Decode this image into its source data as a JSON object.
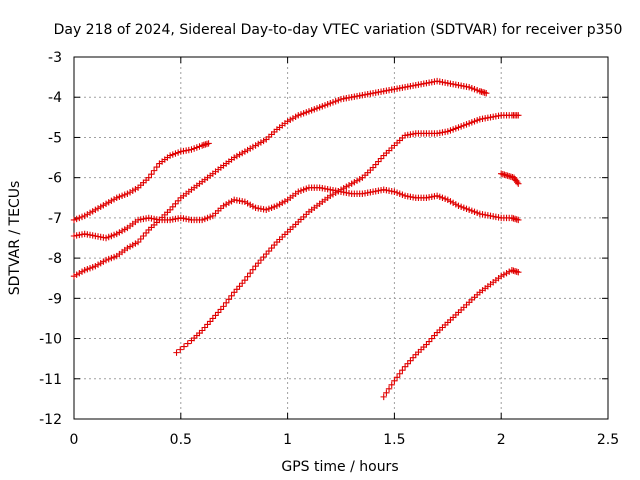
{
  "chart_data": {
    "type": "scatter",
    "title": "Day 218 of 2024, Sidereal Day-to-day VTEC variation (SDTVAR) for receiver p350",
    "xlabel": "GPS time / hours",
    "ylabel": "SDTVAR / TECUs",
    "xlim": [
      0,
      2.5
    ],
    "ylim": [
      -12,
      -3
    ],
    "xticks": [
      "0",
      "0.5",
      "1",
      "1.5",
      "2",
      "2.5"
    ],
    "yticks": [
      "-3",
      "-4",
      "-5",
      "-6",
      "-7",
      "-8",
      "-9",
      "-10",
      "-11",
      "-12"
    ],
    "grid": true,
    "marker": "plus",
    "color": "#e00000",
    "series": [
      {
        "points": [
          [
            0.0,
            -7.05
          ],
          [
            0.05,
            -6.95
          ],
          [
            0.1,
            -6.8
          ],
          [
            0.15,
            -6.65
          ],
          [
            0.2,
            -6.5
          ],
          [
            0.25,
            -6.4
          ],
          [
            0.3,
            -6.25
          ],
          [
            0.35,
            -6.0
          ],
          [
            0.4,
            -5.65
          ],
          [
            0.45,
            -5.45
          ],
          [
            0.5,
            -5.35
          ],
          [
            0.55,
            -5.3
          ],
          [
            0.6,
            -5.2
          ],
          [
            0.63,
            -5.15
          ]
        ]
      },
      {
        "points": [
          [
            0.0,
            -7.45
          ],
          [
            0.05,
            -7.4
          ],
          [
            0.1,
            -7.45
          ],
          [
            0.15,
            -7.5
          ],
          [
            0.2,
            -7.4
          ],
          [
            0.25,
            -7.25
          ],
          [
            0.3,
            -7.05
          ],
          [
            0.35,
            -7.0
          ],
          [
            0.4,
            -7.05
          ],
          [
            0.45,
            -7.05
          ],
          [
            0.5,
            -7.0
          ],
          [
            0.55,
            -7.05
          ],
          [
            0.6,
            -7.05
          ],
          [
            0.65,
            -6.95
          ],
          [
            0.7,
            -6.7
          ],
          [
            0.75,
            -6.55
          ],
          [
            0.8,
            -6.6
          ],
          [
            0.85,
            -6.75
          ],
          [
            0.9,
            -6.8
          ],
          [
            0.95,
            -6.7
          ],
          [
            1.0,
            -6.55
          ],
          [
            1.05,
            -6.35
          ],
          [
            1.1,
            -6.25
          ],
          [
            1.15,
            -6.25
          ],
          [
            1.2,
            -6.3
          ],
          [
            1.25,
            -6.35
          ],
          [
            1.3,
            -6.4
          ],
          [
            1.35,
            -6.4
          ],
          [
            1.4,
            -6.35
          ],
          [
            1.45,
            -6.3
          ],
          [
            1.5,
            -6.35
          ],
          [
            1.55,
            -6.45
          ],
          [
            1.6,
            -6.5
          ],
          [
            1.65,
            -6.5
          ],
          [
            1.7,
            -6.45
          ],
          [
            1.75,
            -6.55
          ],
          [
            1.8,
            -6.7
          ],
          [
            1.85,
            -6.8
          ],
          [
            1.9,
            -6.9
          ],
          [
            1.95,
            -6.95
          ],
          [
            2.0,
            -7.0
          ],
          [
            2.05,
            -7.0
          ],
          [
            2.08,
            -7.05
          ]
        ]
      },
      {
        "points": [
          [
            0.0,
            -8.45
          ],
          [
            0.05,
            -8.3
          ],
          [
            0.1,
            -8.2
          ],
          [
            0.15,
            -8.05
          ],
          [
            0.2,
            -7.95
          ],
          [
            0.25,
            -7.75
          ],
          [
            0.3,
            -7.6
          ],
          [
            0.35,
            -7.3
          ],
          [
            0.4,
            -7.05
          ],
          [
            0.45,
            -6.8
          ],
          [
            0.5,
            -6.5
          ],
          [
            0.55,
            -6.3
          ],
          [
            0.6,
            -6.1
          ],
          [
            0.65,
            -5.9
          ],
          [
            0.7,
            -5.7
          ],
          [
            0.75,
            -5.5
          ],
          [
            0.8,
            -5.35
          ],
          [
            0.85,
            -5.2
          ],
          [
            0.9,
            -5.05
          ],
          [
            0.95,
            -4.8
          ],
          [
            1.0,
            -4.6
          ],
          [
            1.05,
            -4.45
          ],
          [
            1.1,
            -4.35
          ],
          [
            1.15,
            -4.25
          ],
          [
            1.2,
            -4.15
          ],
          [
            1.25,
            -4.05
          ],
          [
            1.3,
            -4.0
          ],
          [
            1.35,
            -3.95
          ],
          [
            1.4,
            -3.9
          ],
          [
            1.45,
            -3.85
          ],
          [
            1.5,
            -3.8
          ],
          [
            1.55,
            -3.75
          ],
          [
            1.6,
            -3.7
          ],
          [
            1.65,
            -3.65
          ],
          [
            1.7,
            -3.6
          ],
          [
            1.75,
            -3.65
          ],
          [
            1.8,
            -3.7
          ],
          [
            1.85,
            -3.75
          ],
          [
            1.9,
            -3.85
          ],
          [
            1.93,
            -3.9
          ]
        ]
      },
      {
        "points": [
          [
            0.48,
            -10.35
          ],
          [
            0.55,
            -10.05
          ],
          [
            0.6,
            -9.8
          ],
          [
            0.65,
            -9.5
          ],
          [
            0.7,
            -9.2
          ],
          [
            0.75,
            -8.85
          ],
          [
            0.8,
            -8.55
          ],
          [
            0.85,
            -8.2
          ],
          [
            0.9,
            -7.9
          ],
          [
            0.95,
            -7.6
          ],
          [
            1.0,
            -7.35
          ],
          [
            1.05,
            -7.1
          ],
          [
            1.1,
            -6.85
          ],
          [
            1.15,
            -6.65
          ],
          [
            1.2,
            -6.45
          ],
          [
            1.25,
            -6.3
          ],
          [
            1.3,
            -6.15
          ],
          [
            1.35,
            -6.0
          ],
          [
            1.4,
            -5.75
          ],
          [
            1.45,
            -5.45
          ],
          [
            1.5,
            -5.2
          ],
          [
            1.55,
            -4.95
          ],
          [
            1.6,
            -4.9
          ],
          [
            1.65,
            -4.9
          ],
          [
            1.7,
            -4.9
          ],
          [
            1.75,
            -4.85
          ],
          [
            1.8,
            -4.75
          ],
          [
            1.85,
            -4.65
          ],
          [
            1.9,
            -4.55
          ],
          [
            1.95,
            -4.5
          ],
          [
            2.0,
            -4.45
          ],
          [
            2.05,
            -4.45
          ],
          [
            2.08,
            -4.45
          ]
        ]
      },
      {
        "points": [
          [
            2.0,
            -5.9
          ],
          [
            2.03,
            -5.95
          ],
          [
            2.06,
            -6.0
          ],
          [
            2.08,
            -6.15
          ]
        ]
      },
      {
        "points": [
          [
            1.45,
            -11.45
          ],
          [
            1.5,
            -11.05
          ],
          [
            1.55,
            -10.7
          ],
          [
            1.6,
            -10.4
          ],
          [
            1.65,
            -10.15
          ],
          [
            1.7,
            -9.85
          ],
          [
            1.75,
            -9.6
          ],
          [
            1.8,
            -9.35
          ],
          [
            1.85,
            -9.1
          ],
          [
            1.9,
            -8.85
          ],
          [
            1.95,
            -8.65
          ],
          [
            2.0,
            -8.45
          ],
          [
            2.05,
            -8.3
          ],
          [
            2.08,
            -8.35
          ]
        ]
      }
    ]
  }
}
